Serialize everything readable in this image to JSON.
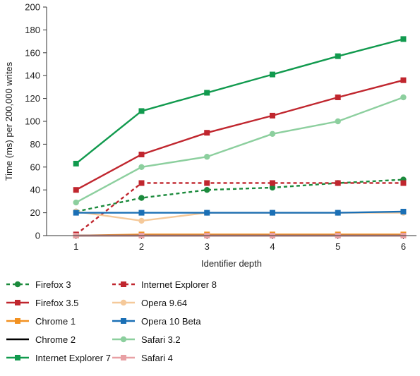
{
  "chart_data": {
    "type": "line",
    "xlabel": "Identifier depth",
    "ylabel": "Time (ms) per 200,000 writes",
    "x": [
      1,
      2,
      3,
      4,
      5,
      6
    ],
    "xlim": [
      0.55,
      6.2
    ],
    "ylim": [
      0,
      200
    ],
    "yticks": [
      0,
      20,
      40,
      60,
      80,
      100,
      120,
      140,
      160,
      180,
      200
    ],
    "grid": false,
    "legend_position": "bottom",
    "series": [
      {
        "name": "Firefox 3",
        "values": [
          21,
          33,
          40,
          42,
          46,
          49
        ],
        "color": "#1b8a3c",
        "dashed": true,
        "marker": "circle"
      },
      {
        "name": "Internet Explorer 8",
        "values": [
          1,
          46,
          46,
          46,
          46,
          46
        ],
        "color": "#c0262e",
        "dashed": true,
        "marker": "square"
      },
      {
        "name": "Firefox 3.5",
        "values": [
          40,
          71,
          90,
          105,
          121,
          136
        ],
        "color": "#c0262e",
        "dashed": false,
        "marker": "square"
      },
      {
        "name": "Opera 9.64",
        "values": [
          21,
          13,
          20,
          20,
          20,
          20
        ],
        "color": "#f5c99a",
        "dashed": false,
        "marker": "circle"
      },
      {
        "name": "Chrome 1",
        "values": [
          0,
          1,
          1,
          1,
          1,
          1
        ],
        "color": "#f29121",
        "dashed": false,
        "marker": "square"
      },
      {
        "name": "Opera 10 Beta",
        "values": [
          20,
          20,
          20,
          20,
          20,
          21
        ],
        "color": "#1a6fb5",
        "dashed": false,
        "marker": "square"
      },
      {
        "name": "Chrome 2",
        "values": [
          0,
          0,
          0,
          0,
          0,
          0
        ],
        "color": "#000000",
        "dashed": false,
        "marker": "none"
      },
      {
        "name": "Safari 3.2",
        "values": [
          29,
          60,
          69,
          89,
          100,
          121
        ],
        "color": "#8ccf9e",
        "dashed": false,
        "marker": "circle"
      },
      {
        "name": "Internet Explorer 7",
        "values": [
          63,
          109,
          125,
          141,
          157,
          172
        ],
        "color": "#119a4e",
        "dashed": false,
        "marker": "square"
      },
      {
        "name": "Safari 4",
        "values": [
          0,
          0,
          0,
          0,
          0,
          0
        ],
        "color": "#e8a0a4",
        "dashed": false,
        "marker": "square"
      }
    ]
  }
}
